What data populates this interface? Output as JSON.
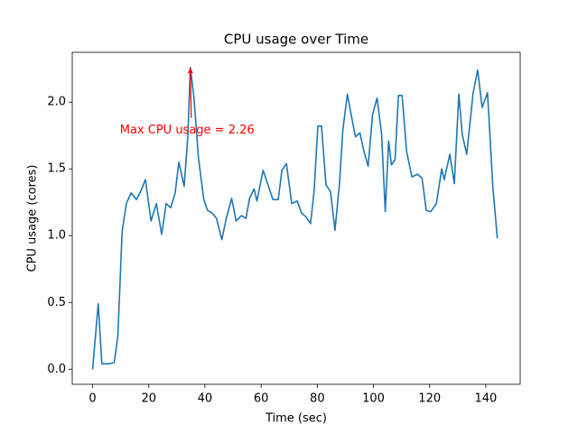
{
  "chart_data": {
    "type": "line",
    "title": "CPU usage over Time",
    "x_label": "Time (sec)",
    "y_label": "CPU usage (cores)",
    "annotation": "Max CPU usage = 2.26",
    "annotation_color": "#ff0000",
    "series": [
      {
        "name": "CPU usage",
        "color": "#1f77b4",
        "x": [
          0,
          2,
          3.3,
          5.8,
          7.7,
          9,
          10.5,
          12,
          13.7,
          15.6,
          17.3,
          18.8,
          20.8,
          22.7,
          24.6,
          26.2,
          27.8,
          29.4,
          30.7,
          32.6,
          33.9,
          34.8,
          36.1,
          37.7,
          39.6,
          40.9,
          42.5,
          44.1,
          46,
          47.6,
          49.5,
          51.1,
          53,
          54.6,
          55.9,
          57.5,
          58.5,
          60.7,
          62.3,
          64.2,
          66.1,
          67.4,
          69,
          70.9,
          72.8,
          74.4,
          76,
          77.6,
          78.9,
          80.2,
          81.5,
          83.1,
          84.7,
          86.3,
          87.9,
          89.1,
          90.7,
          92.3,
          93.6,
          95.2,
          96.5,
          98.1,
          99.7,
          101.3,
          102.9,
          104.2,
          105.4,
          106.4,
          107.7,
          108.9,
          110.2,
          111.8,
          113.7,
          115.7,
          117.3,
          118.8,
          120.4,
          122.4,
          124.3,
          125.2,
          127.2,
          128.8,
          130.4,
          131.6,
          133.2,
          135.5,
          137.1,
          138.7,
          140.6,
          142.5,
          144.1
        ],
        "values": [
          0,
          0.49,
          0.04,
          0.04,
          0.05,
          0.25,
          1.03,
          1.24,
          1.32,
          1.27,
          1.34,
          1.42,
          1.11,
          1.24,
          1.01,
          1.24,
          1.21,
          1.32,
          1.55,
          1.37,
          1.74,
          2.26,
          2.03,
          1.58,
          1.27,
          1.19,
          1.17,
          1.13,
          0.97,
          1.13,
          1.28,
          1.11,
          1.15,
          1.13,
          1.28,
          1.35,
          1.26,
          1.49,
          1.39,
          1.27,
          1.27,
          1.49,
          1.54,
          1.24,
          1.26,
          1.17,
          1.14,
          1.09,
          1.34,
          1.82,
          1.82,
          1.38,
          1.33,
          1.04,
          1.39,
          1.79,
          2.06,
          1.88,
          1.74,
          1.77,
          1.64,
          1.52,
          1.91,
          2.03,
          1.76,
          1.18,
          1.71,
          1.53,
          1.57,
          2.05,
          2.05,
          1.63,
          1.44,
          1.46,
          1.43,
          1.19,
          1.18,
          1.24,
          1.5,
          1.42,
          1.61,
          1.39,
          2.06,
          1.76,
          1.61,
          2.07,
          2.24,
          1.96,
          2.07,
          1.37,
          0.98
        ]
      }
    ],
    "xlim": [
      -7.25,
      152.25
    ],
    "xticks": [
      0,
      20,
      40,
      60,
      80,
      100,
      120,
      140
    ],
    "ylim": [
      -0.113,
      2.373
    ],
    "yticks": [
      {
        "value": 0,
        "label": "0.0"
      },
      {
        "value": 0.5,
        "label": "0.5"
      },
      {
        "value": 1,
        "label": "1.0"
      },
      {
        "value": 1.5,
        "label": "1.5"
      },
      {
        "value": 2,
        "label": "2.0"
      }
    ],
    "grid": false
  }
}
